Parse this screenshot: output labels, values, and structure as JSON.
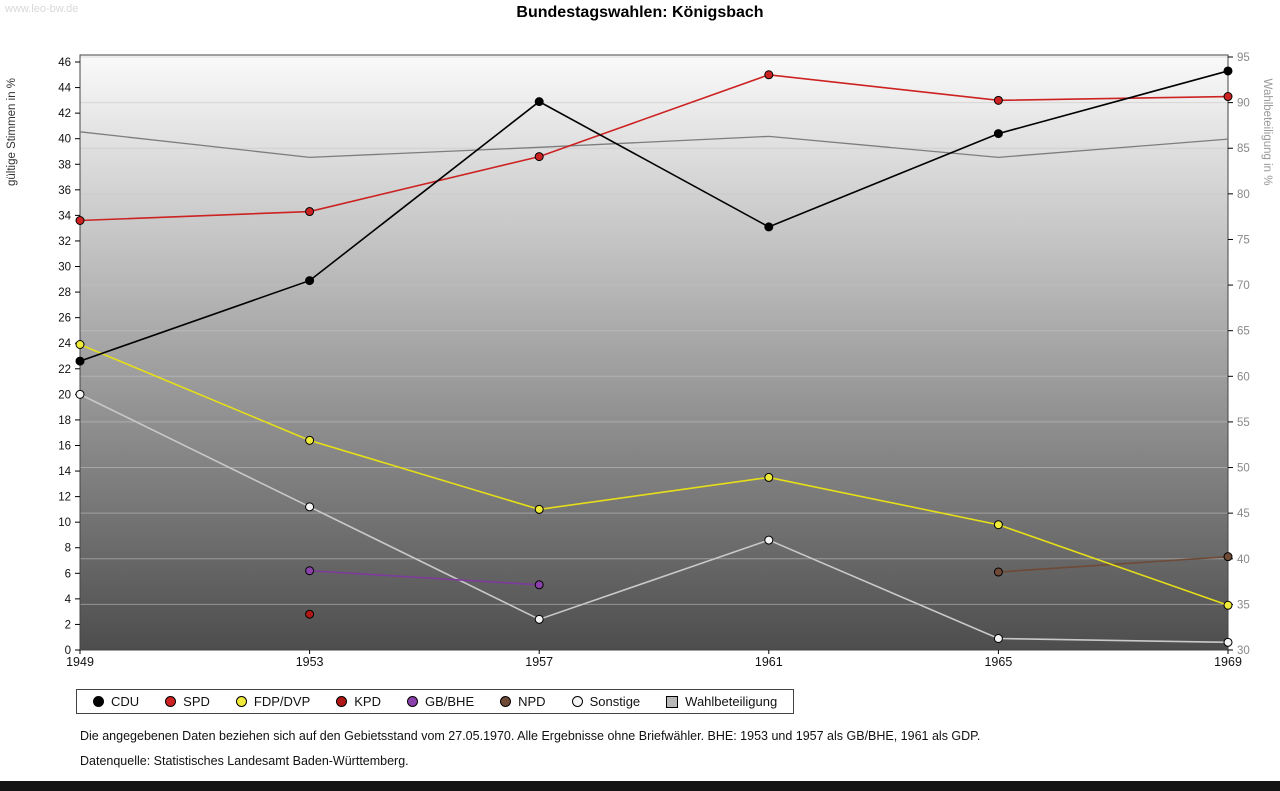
{
  "page": {
    "watermark": "www.leo-bw.de",
    "title": "Bundestagswahlen: Königsbach"
  },
  "chart_data": {
    "type": "line",
    "title": "Bundestagswahlen: Königsbach",
    "x_categories": [
      "1949",
      "1953",
      "1957",
      "1961",
      "1965",
      "1969"
    ],
    "axes": {
      "left": {
        "label": "gültige Stimmen in %",
        "min": 0,
        "max": 46,
        "tick_step": 2
      },
      "right": {
        "label": "Wahlbeteiligung in %",
        "min": 30,
        "max": 95,
        "tick_step": 5
      }
    },
    "grid": "horizontal",
    "legend_position": "bottom",
    "plot_background": {
      "top_color": "#fafafa",
      "bottom_color": "#4d4d4d"
    },
    "series": [
      {
        "name": "CDU",
        "axis": "left",
        "color": "#000000",
        "marker_fill": "#000000",
        "marker": "circle",
        "values": [
          22.6,
          28.9,
          42.9,
          33.1,
          40.4,
          45.3
        ]
      },
      {
        "name": "SPD",
        "axis": "left",
        "color": "#cc2222",
        "marker_fill": "#cc2222",
        "marker": "circle",
        "values": [
          33.6,
          34.3,
          38.6,
          45.0,
          43.0,
          43.3
        ]
      },
      {
        "name": "FDP/DVP",
        "axis": "left",
        "color": "#e6df18",
        "marker_fill": "#f0ea3a",
        "marker": "circle",
        "values": [
          23.9,
          16.4,
          11.0,
          13.5,
          9.8,
          3.5
        ]
      },
      {
        "name": "KPD",
        "axis": "left",
        "color": "#991414",
        "marker_fill": "#b01818",
        "marker": "circle",
        "values": [
          null,
          2.8,
          null,
          null,
          null,
          null
        ]
      },
      {
        "name": "GB/BHE",
        "axis": "left",
        "color": "#7e3a9c",
        "marker_fill": "#8a42aa",
        "marker": "circle",
        "values": [
          null,
          6.2,
          5.1,
          null,
          null,
          null
        ]
      },
      {
        "name": "NPD",
        "axis": "left",
        "color": "#6e4a37",
        "marker_fill": "#6e4a37",
        "marker": "circle",
        "values": [
          null,
          null,
          null,
          null,
          6.1,
          7.3
        ]
      },
      {
        "name": "Sonstige",
        "axis": "left",
        "color": "#c9c9c9",
        "marker_fill": "#f5f5f5",
        "marker": "circle",
        "values": [
          20.0,
          11.2,
          2.4,
          8.6,
          0.9,
          0.6
        ]
      },
      {
        "name": "Wahlbeteiligung",
        "axis": "right",
        "color": "#7d7d7d",
        "marker_fill": "#b8b8b8",
        "marker": "square",
        "show_point_markers": false,
        "values": [
          86.8,
          84.0,
          85.1,
          86.3,
          84.0,
          86.0
        ]
      }
    ]
  },
  "notes": {
    "line1": "Die angegebenen Daten beziehen sich auf den Gebietsstand vom 27.05.1970. Alle Ergebnisse ohne Briefwähler. BHE: 1953 und 1957 als GB/BHE, 1961 als GDP.",
    "line2": "Datenquelle: Statistisches Landesamt Baden-Württemberg."
  }
}
